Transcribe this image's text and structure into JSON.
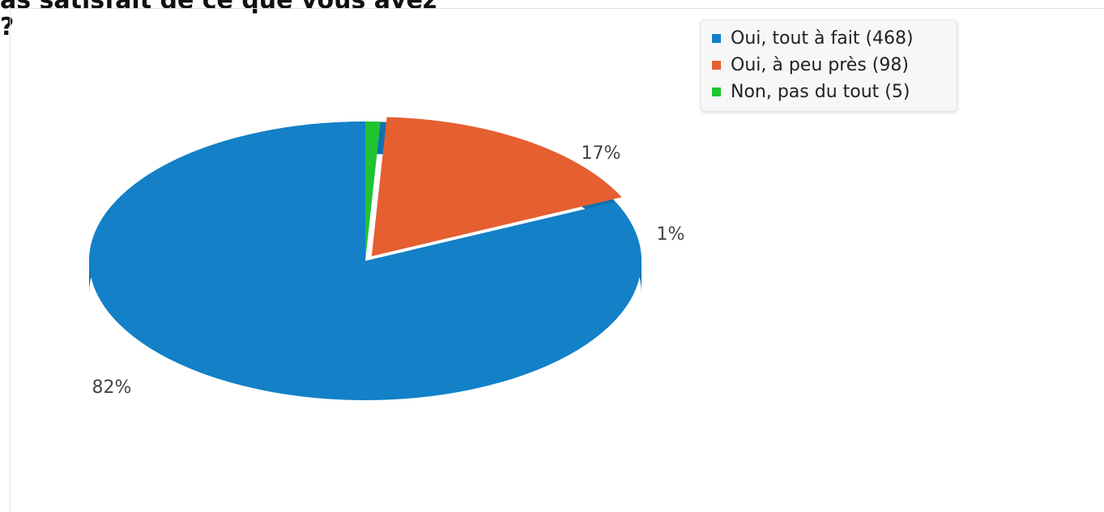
{
  "question": {
    "title_line1": "as satisfait de ce que vous avez",
    "title_line2": "?"
  },
  "chart_data": {
    "type": "pie",
    "series": [
      {
        "label": "Oui, tout à fait (468)",
        "value": 468,
        "percent_label": "82%",
        "color": "#1380c8"
      },
      {
        "label": "Oui, à peu près (98)",
        "value": 98,
        "percent_label": "17%",
        "color": "#e55f30"
      },
      {
        "label": "Non, pas du tout (5)",
        "value": 5,
        "percent_label": "1%",
        "color": "#1fc430"
      }
    ],
    "legend": "top-right",
    "three_d": true
  }
}
